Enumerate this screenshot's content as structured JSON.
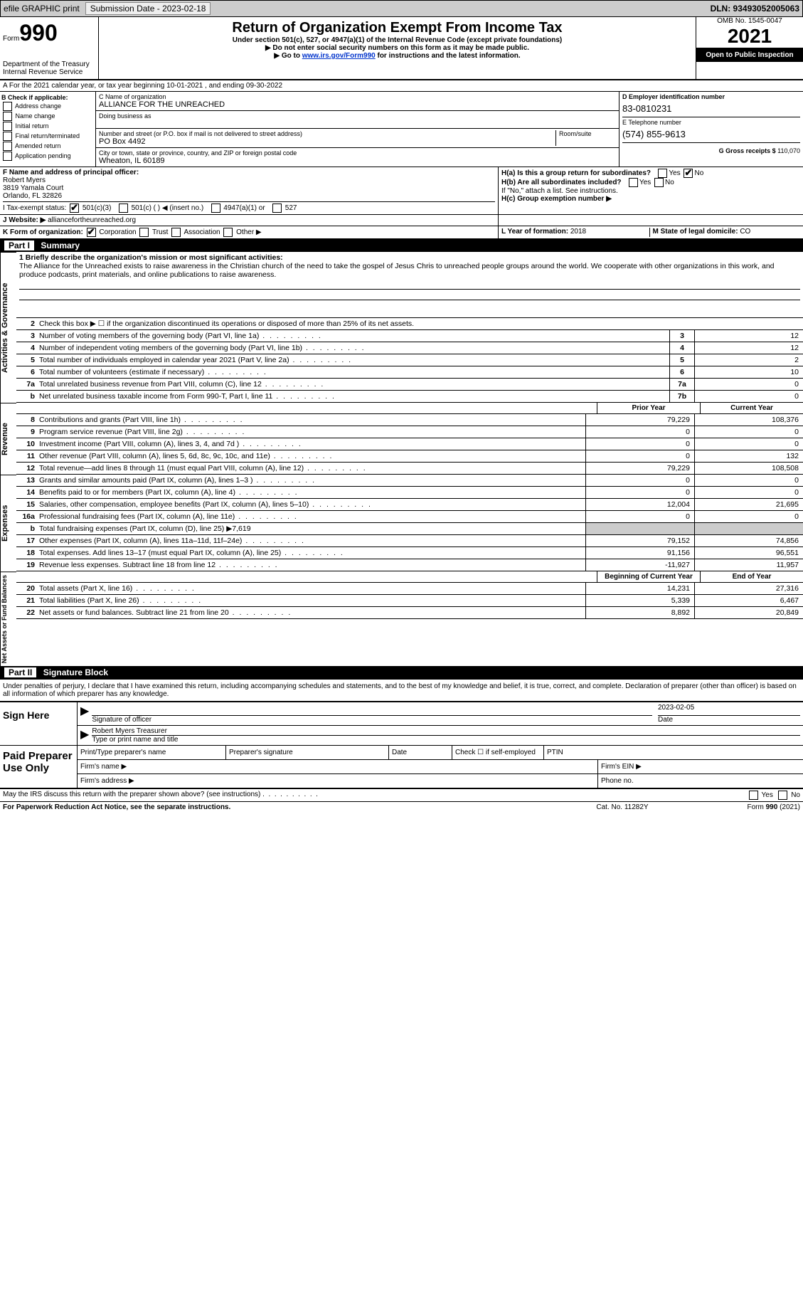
{
  "topbar": {
    "efile": "efile GRAPHIC print",
    "submission_label": "Submission Date - 2023-02-18",
    "dln": "DLN: 93493052005063"
  },
  "header": {
    "form_prefix": "Form",
    "form_num": "990",
    "title": "Return of Organization Exempt From Income Tax",
    "sub1": "Under section 501(c), 527, or 4947(a)(1) of the Internal Revenue Code (except private foundations)",
    "sub2": "▶ Do not enter social security numbers on this form as it may be made public.",
    "sub3_prefix": "▶ Go to ",
    "sub3_link": "www.irs.gov/Form990",
    "sub3_suffix": " for instructions and the latest information.",
    "dept": "Department of the Treasury",
    "irs": "Internal Revenue Service",
    "omb": "OMB No. 1545-0047",
    "year": "2021",
    "open": "Open to Public Inspection"
  },
  "periodA": "A For the 2021 calendar year, or tax year beginning 10-01-2021    , and ending 09-30-2022",
  "blockB": {
    "label": "B Check if applicable:",
    "items": [
      "Address change",
      "Name change",
      "Initial return",
      "Final return/terminated",
      "Amended return",
      "Application pending"
    ]
  },
  "blockC": {
    "name_label": "C Name of organization",
    "name": "ALLIANCE FOR THE UNREACHED",
    "dba_label": "Doing business as",
    "addr_label": "Number and street (or P.O. box if mail is not delivered to street address)",
    "room_label": "Room/suite",
    "addr": "PO Box 4492",
    "city_label": "City or town, state or province, country, and ZIP or foreign postal code",
    "city": "Wheaton, IL  60189"
  },
  "blockD": {
    "label": "D Employer identification number",
    "ein": "83-0810231"
  },
  "blockE": {
    "label": "E Telephone number",
    "phone": "(574) 855-9613"
  },
  "blockG": {
    "label": "G Gross receipts $",
    "val": "110,070"
  },
  "blockF": {
    "label": "F Name and address of principal officer:",
    "name": "Robert Myers",
    "addr1": "3819 Yamala Court",
    "addr2": "Orlando, FL  32826"
  },
  "blockH": {
    "a_label": "H(a)  Is this a group return for subordinates?",
    "b_label": "H(b)  Are all subordinates included?",
    "b_note": "If \"No,\" attach a list. See instructions.",
    "c_label": "H(c)  Group exemption number ▶",
    "yes": "Yes",
    "no": "No"
  },
  "blockI": {
    "label": "I    Tax-exempt status:",
    "opts": [
      "501(c)(3)",
      "501(c) (  ) ◀ (insert no.)",
      "4947(a)(1) or",
      "527"
    ]
  },
  "blockJ": {
    "label": "J   Website: ▶",
    "val": " alliancefortheunreached.org"
  },
  "blockK": {
    "label": "K Form of organization:",
    "opts": [
      "Corporation",
      "Trust",
      "Association",
      "Other ▶"
    ]
  },
  "blockL": {
    "label": "L Year of formation: ",
    "val": "2018"
  },
  "blockM": {
    "label": "M State of legal domicile: ",
    "val": "CO"
  },
  "part1_label": "Part I",
  "part1_title": "Summary",
  "mission": {
    "label": "1 Briefly describe the organization's mission or most significant activities:",
    "text": "The Alliance for the Unreached exists to raise awareness in the Christian church of the need to take the gospel of Jesus Chris to unreached people groups around the world. We cooperate with other organizations in this work, and produce podcasts, print materials, and online publications to raise awareness."
  },
  "side_labels": {
    "ag": "Activities & Governance",
    "rev": "Revenue",
    "exp": "Expenses",
    "net": "Net Assets or Fund Balances"
  },
  "lines_ag": [
    {
      "num": "2",
      "desc": "Check this box ▶ ☐ if the organization discontinued its operations or disposed of more than 25% of its net assets."
    },
    {
      "num": "3",
      "desc": "Number of voting members of the governing body (Part VI, line 1a)",
      "box": "3",
      "v": "12"
    },
    {
      "num": "4",
      "desc": "Number of independent voting members of the governing body (Part VI, line 1b)",
      "box": "4",
      "v": "12"
    },
    {
      "num": "5",
      "desc": "Total number of individuals employed in calendar year 2021 (Part V, line 2a)",
      "box": "5",
      "v": "2"
    },
    {
      "num": "6",
      "desc": "Total number of volunteers (estimate if necessary)",
      "box": "6",
      "v": "10"
    },
    {
      "num": "7a",
      "desc": "Total unrelated business revenue from Part VIII, column (C), line 12",
      "box": "7a",
      "v": "0"
    },
    {
      "num": "b",
      "desc": "Net unrelated business taxable income from Form 990-T, Part I, line 11",
      "box": "7b",
      "v": "0"
    }
  ],
  "col_headers": {
    "prior": "Prior Year",
    "current": "Current Year",
    "begin": "Beginning of Current Year",
    "end": "End of Year"
  },
  "lines_rev": [
    {
      "num": "8",
      "desc": "Contributions and grants (Part VIII, line 1h)",
      "p": "79,229",
      "c": "108,376"
    },
    {
      "num": "9",
      "desc": "Program service revenue (Part VIII, line 2g)",
      "p": "0",
      "c": "0"
    },
    {
      "num": "10",
      "desc": "Investment income (Part VIII, column (A), lines 3, 4, and 7d )",
      "p": "0",
      "c": "0"
    },
    {
      "num": "11",
      "desc": "Other revenue (Part VIII, column (A), lines 5, 6d, 8c, 9c, 10c, and 11e)",
      "p": "0",
      "c": "132"
    },
    {
      "num": "12",
      "desc": "Total revenue—add lines 8 through 11 (must equal Part VIII, column (A), line 12)",
      "p": "79,229",
      "c": "108,508"
    }
  ],
  "lines_exp": [
    {
      "num": "13",
      "desc": "Grants and similar amounts paid (Part IX, column (A), lines 1–3 )",
      "p": "0",
      "c": "0"
    },
    {
      "num": "14",
      "desc": "Benefits paid to or for members (Part IX, column (A), line 4)",
      "p": "0",
      "c": "0"
    },
    {
      "num": "15",
      "desc": "Salaries, other compensation, employee benefits (Part IX, column (A), lines 5–10)",
      "p": "12,004",
      "c": "21,695"
    },
    {
      "num": "16a",
      "desc": "Professional fundraising fees (Part IX, column (A), line 11e)",
      "p": "0",
      "c": "0"
    },
    {
      "num": "b",
      "desc": "Total fundraising expenses (Part IX, column (D), line 25) ▶7,619",
      "gray": true
    },
    {
      "num": "17",
      "desc": "Other expenses (Part IX, column (A), lines 11a–11d, 11f–24e)",
      "p": "79,152",
      "c": "74,856"
    },
    {
      "num": "18",
      "desc": "Total expenses. Add lines 13–17 (must equal Part IX, column (A), line 25)",
      "p": "91,156",
      "c": "96,551"
    },
    {
      "num": "19",
      "desc": "Revenue less expenses. Subtract line 18 from line 12",
      "p": "-11,927",
      "c": "11,957"
    }
  ],
  "lines_net": [
    {
      "num": "20",
      "desc": "Total assets (Part X, line 16)",
      "p": "14,231",
      "c": "27,316"
    },
    {
      "num": "21",
      "desc": "Total liabilities (Part X, line 26)",
      "p": "5,339",
      "c": "6,467"
    },
    {
      "num": "22",
      "desc": "Net assets or fund balances. Subtract line 21 from line 20",
      "p": "8,892",
      "c": "20,849"
    }
  ],
  "part2_label": "Part II",
  "part2_title": "Signature Block",
  "penalty": "Under penalties of perjury, I declare that I have examined this return, including accompanying schedules and statements, and to the best of my knowledge and belief, it is true, correct, and complete. Declaration of preparer (other than officer) is based on all information of which preparer has any knowledge.",
  "sign": {
    "label": "Sign Here",
    "sig_of_officer": "Signature of officer",
    "date": "Date",
    "date_val": "2023-02-05",
    "name": "Robert Myers  Treasurer",
    "name_label": "Type or print name and title"
  },
  "prep": {
    "label": "Paid Preparer Use Only",
    "print_label": "Print/Type preparer's name",
    "sig_label": "Preparer's signature",
    "date_label": "Date",
    "check_label": "Check ☐ if self-employed",
    "ptin": "PTIN",
    "firm_name": "Firm's name    ▶",
    "firm_ein": "Firm's EIN ▶",
    "firm_addr": "Firm's address ▶",
    "phone": "Phone no."
  },
  "discuss": "May the IRS discuss this return with the preparer shown above? (see instructions)",
  "footer": {
    "left": "For Paperwork Reduction Act Notice, see the separate instructions.",
    "mid": "Cat. No. 11282Y",
    "right": "Form 990 (2021)"
  }
}
